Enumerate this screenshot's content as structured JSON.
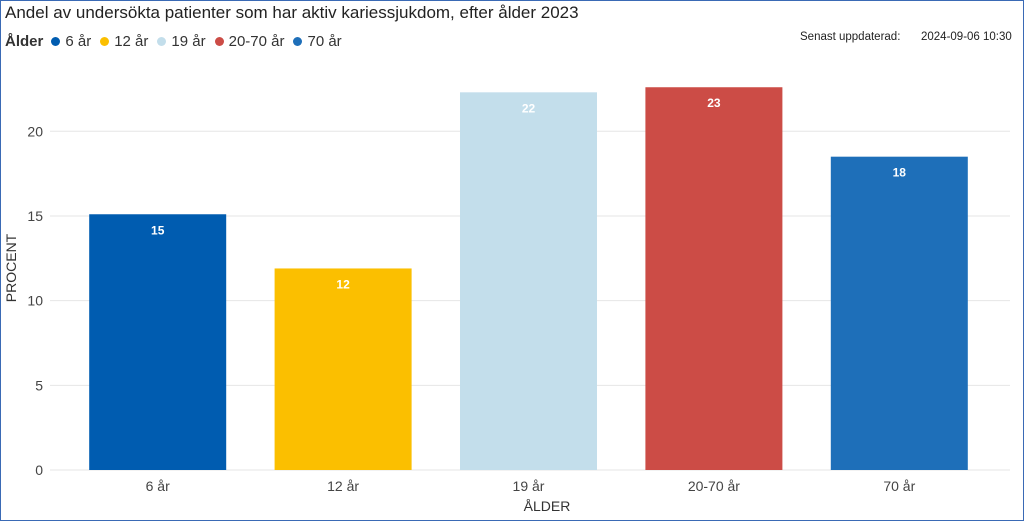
{
  "title": "Andel av undersökta patienter som har aktiv kariessjukdom, efter ålder 2023",
  "legend": {
    "title": "Ålder",
    "items": [
      {
        "label": "6 år",
        "color": "#005cb0"
      },
      {
        "label": "12 år",
        "color": "#fbbf00"
      },
      {
        "label": "19 år",
        "color": "#c3deeb"
      },
      {
        "label": "20-70 år",
        "color": "#cc4c46"
      },
      {
        "label": "70 år",
        "color": "#1e6fb9"
      }
    ]
  },
  "updated": {
    "label": "Senast uppdaterad:",
    "value": "2024-09-06 10:30"
  },
  "chart_data": {
    "type": "bar",
    "categories": [
      "6 år",
      "12 år",
      "19 år",
      "20-70 år",
      "70 år"
    ],
    "values": [
      15.1,
      11.9,
      22.3,
      22.6,
      18.5
    ],
    "data_labels": [
      "15",
      "12",
      "22",
      "23",
      "18"
    ],
    "colors": [
      "#005cb0",
      "#fbbf00",
      "#c3deeb",
      "#cc4c46",
      "#1e6fb9"
    ],
    "xlabel": "ÅLDER",
    "ylabel": "PROCENT",
    "ylim": [
      0,
      23.5
    ],
    "yticks": [
      0,
      5,
      10,
      15,
      20
    ],
    "grid": true,
    "legend_position": "top-left"
  }
}
